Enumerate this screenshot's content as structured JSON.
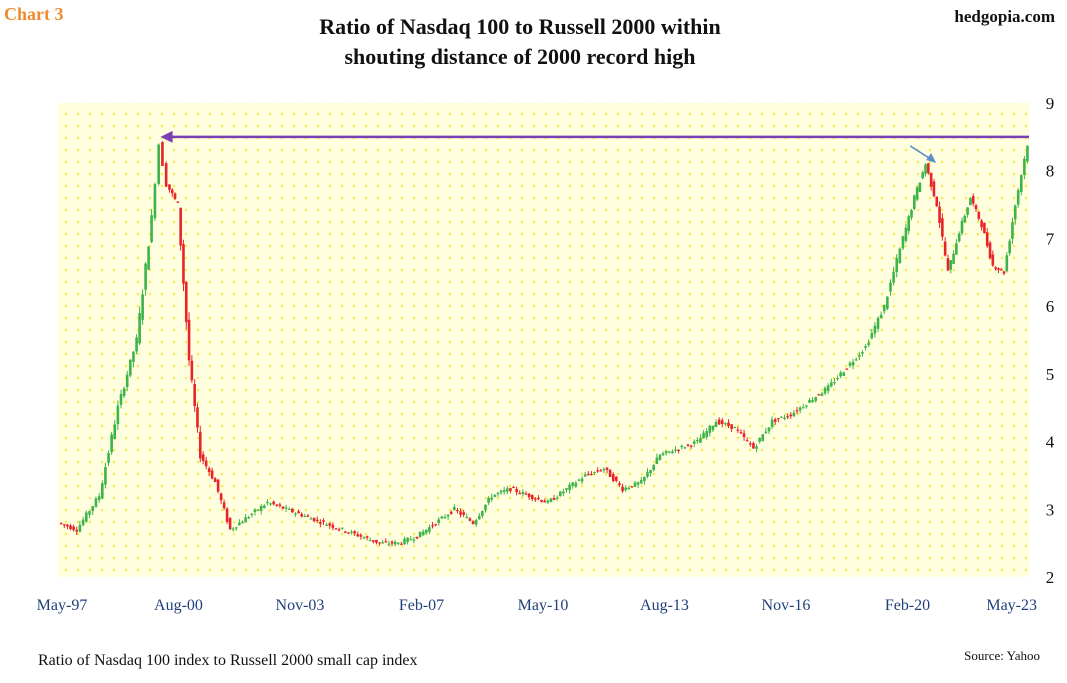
{
  "chart_label": "Chart 3",
  "source_site": "hedgopia.com",
  "footer_caption": "Ratio of Nasdaq 100 index to Russell 2000 small cap index",
  "footer_source": "Source: Yahoo",
  "colors": {
    "up": "#3cb44b",
    "down": "#e8232a",
    "background": "#ffffe0",
    "dots": "#f5ea55",
    "record_line": "#7a3fb5",
    "arrow": "#5b8fd0",
    "axis_text": "#1f3f7a",
    "chart_label": "#f08a30"
  },
  "chart_data": {
    "type": "candlestick",
    "title": "Ratio of Nasdaq 100 to Russell 2000 within shouting distance of 2000 record high",
    "title_lines": [
      "Ratio of Nasdaq 100 to Russell 2000 within",
      "shouting distance of 2000 record high"
    ],
    "xlabel": "",
    "ylabel": "",
    "ylim": [
      2,
      9
    ],
    "y_ticks": [
      "2",
      "3",
      "4",
      "5",
      "6",
      "7",
      "8",
      "9"
    ],
    "x_tick_labels": [
      "May-97",
      "Aug-00",
      "Nov-03",
      "Feb-07",
      "May-10",
      "Aug-13",
      "Nov-16",
      "Feb-20",
      "May-23"
    ],
    "xlim": [
      1997.33,
      2023.33
    ],
    "grid": false,
    "legend": "none",
    "annotations": [
      {
        "type": "horizontal-arrow",
        "y": 8.5,
        "x_from": 2023.33,
        "x_to": 2000.1,
        "description": "2000 record high level"
      },
      {
        "type": "pointer-arrow",
        "target_x": 2020.9,
        "target_y": 8.1
      }
    ],
    "series": [
      {
        "x": [
          1997.4,
          1997.9,
          1998.5,
          1999.0,
          1999.5,
          1999.9,
          2000.1,
          2000.3,
          2000.6,
          2000.9,
          2001.2,
          2001.6,
          2002.0,
          2002.5,
          2003.0,
          2003.5,
          2004.0,
          2004.5,
          2005.0,
          2005.5,
          2006.0,
          2006.5,
          2007.0,
          2007.5,
          2008.0,
          2008.5,
          2009.0,
          2009.5,
          2010.0,
          2010.5,
          2011.0,
          2011.5,
          2012.0,
          2012.5,
          2013.0,
          2013.5,
          2014.0,
          2014.5,
          2015.0,
          2015.5,
          2016.0,
          2016.5,
          2017.0,
          2017.5,
          2018.0,
          2018.5,
          2019.0,
          2019.5,
          2020.0,
          2020.3,
          2020.6,
          2020.9,
          2021.2,
          2021.5,
          2021.8,
          2022.1,
          2022.4,
          2022.7,
          2023.0,
          2023.33
        ],
        "y": [
          2.8,
          2.7,
          3.2,
          4.5,
          5.5,
          7.3,
          8.4,
          7.8,
          7.5,
          5.2,
          3.8,
          3.4,
          2.7,
          2.9,
          3.1,
          3.0,
          2.9,
          2.8,
          2.7,
          2.6,
          2.5,
          2.5,
          2.6,
          2.8,
          3.0,
          2.8,
          3.2,
          3.3,
          3.2,
          3.1,
          3.3,
          3.5,
          3.6,
          3.3,
          3.4,
          3.8,
          3.9,
          4.0,
          4.3,
          4.2,
          3.9,
          4.3,
          4.4,
          4.6,
          4.8,
          5.1,
          5.4,
          6.0,
          7.0,
          7.6,
          8.1,
          7.5,
          6.5,
          7.1,
          7.6,
          7.2,
          6.6,
          6.5,
          7.5,
          8.4
        ],
        "values_note": ""
      }
    ]
  }
}
